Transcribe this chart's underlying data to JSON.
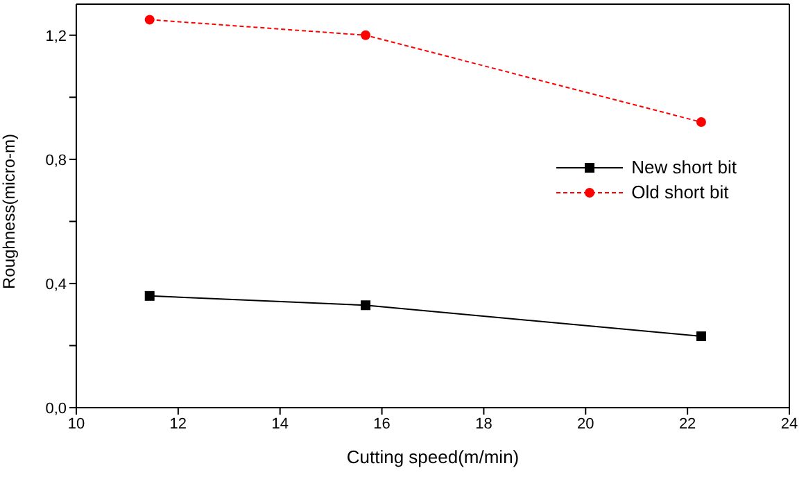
{
  "chart_data": {
    "type": "line",
    "xlabel": "Cutting speed(m/min)",
    "ylabel": "Roughness(micro-m)",
    "series": [
      {
        "name": "New short bit",
        "color": "#000000",
        "marker": "square",
        "line_style": "solid",
        "x": [
          11.44,
          15.68,
          22.27
        ],
        "values": [
          0.36,
          0.33,
          0.23
        ]
      },
      {
        "name": "Old short bit",
        "color": "#ff0000",
        "marker": "circle",
        "line_style": "dashed",
        "x": [
          11.44,
          15.68,
          22.27
        ],
        "values": [
          1.25,
          1.2,
          0.92
        ]
      }
    ],
    "xlim": [
      10,
      24
    ],
    "xticks": [
      10,
      12,
      14,
      16,
      18,
      20,
      22,
      24
    ],
    "ylim": [
      0,
      1.3
    ],
    "yticks": [
      {
        "value": 0,
        "label": "0,0"
      },
      {
        "value": 0.2,
        "label": null
      },
      {
        "value": 0.4,
        "label": "0,4"
      },
      {
        "value": 0.6,
        "label": null
      },
      {
        "value": 0.8,
        "label": "0,8"
      },
      {
        "value": 1,
        "label": null
      },
      {
        "value": 1.2,
        "label": "1,2"
      }
    ],
    "legend": "right"
  }
}
